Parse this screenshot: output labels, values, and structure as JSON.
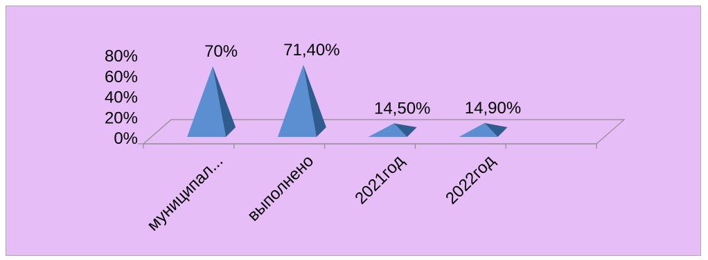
{
  "chart_data": {
    "type": "bar",
    "bar_shape": "pyramid-3d",
    "title": "",
    "xlabel": "",
    "ylabel": "",
    "categories": [
      "муниципал...",
      "выполнено",
      "2021год",
      "2022год"
    ],
    "series": [
      {
        "values": [
          0.7,
          0.714,
          0.145,
          0.149
        ]
      }
    ],
    "data_labels": [
      "70%",
      "71,40%",
      "14,50%",
      "14,90%"
    ],
    "y_ticks": [
      "0%",
      "20%",
      "40%",
      "60%",
      "80%"
    ],
    "ylim": [
      0,
      0.8
    ],
    "grid": false,
    "legend": "none",
    "colors": {
      "background": "#e6bdf6",
      "bar_front": "#5b8fd2",
      "bar_side": "#2f5c8f",
      "axis": "#8c8c8c",
      "text": "#000000"
    }
  }
}
